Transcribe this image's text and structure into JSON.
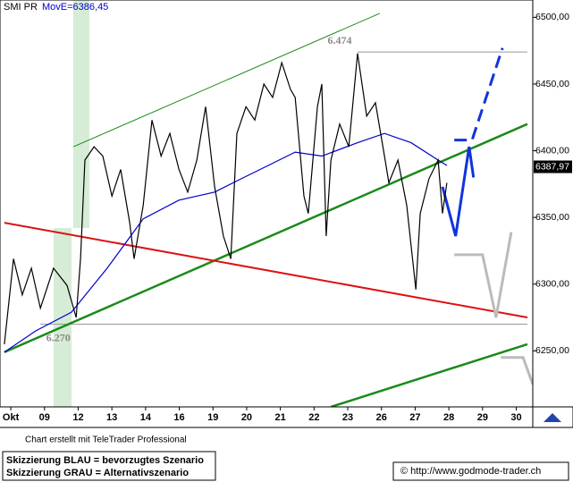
{
  "chart_data": {
    "type": "line",
    "title": "SMI PR",
    "xticks": [
      {
        "value": 0,
        "label": "Okt"
      },
      {
        "value": 1,
        "label": "09"
      },
      {
        "value": 2,
        "label": "12"
      },
      {
        "value": 3,
        "label": "13"
      },
      {
        "value": 4,
        "label": "14"
      },
      {
        "value": 5,
        "label": "16"
      },
      {
        "value": 6,
        "label": "19"
      },
      {
        "value": 7,
        "label": "20"
      },
      {
        "value": 8,
        "label": "21"
      },
      {
        "value": 9,
        "label": "22"
      },
      {
        "value": 10,
        "label": "23"
      },
      {
        "value": 11,
        "label": "26"
      },
      {
        "value": 12,
        "label": "27"
      },
      {
        "value": 13,
        "label": "28"
      },
      {
        "value": 14,
        "label": "29"
      },
      {
        "value": 15,
        "label": "30"
      }
    ],
    "xlim": [
      -0.32,
      15.49
    ],
    "ylim": [
      6208,
      6513
    ],
    "yticks": [
      {
        "value": 6250,
        "label": "6250,00"
      },
      {
        "value": 6300,
        "label": "6300,00"
      },
      {
        "value": 6350,
        "label": "6350,00"
      },
      {
        "value": 6400,
        "label": "6400,00"
      },
      {
        "value": 6450,
        "label": "6450,00"
      },
      {
        "value": 6500,
        "label": "6500,00"
      }
    ],
    "series": [
      {
        "name": "SMI PR",
        "color": "#000000",
        "x": [
          -0.19,
          0.08,
          0.34,
          0.61,
          0.88,
          1.27,
          1.67,
          1.94,
          2.07,
          2.2,
          2.47,
          2.73,
          3.0,
          3.26,
          3.53,
          3.66,
          3.93,
          4.19,
          4.46,
          4.72,
          4.99,
          5.25,
          5.52,
          5.78,
          6.05,
          6.31,
          6.53,
          6.71,
          6.98,
          7.24,
          7.51,
          7.77,
          8.04,
          8.3,
          8.44,
          8.7,
          8.83,
          9.1,
          9.23,
          9.36,
          9.5,
          9.76,
          10.03,
          10.29,
          10.56,
          10.82,
          11.09,
          11.22,
          11.49,
          11.75,
          12.02,
          12.15,
          12.41,
          12.68,
          12.81,
          12.94
        ],
        "values": [
          6255,
          6319,
          6292,
          6312,
          6282,
          6312,
          6299,
          6275,
          6319,
          6393,
          6403,
          6396,
          6366,
          6386,
          6346,
          6319,
          6359,
          6423,
          6396,
          6413,
          6386,
          6369,
          6393,
          6433,
          6373,
          6336,
          6319,
          6413,
          6433,
          6423,
          6450,
          6440,
          6466,
          6446,
          6440,
          6366,
          6353,
          6433,
          6450,
          6336,
          6393,
          6420,
          6403,
          6473,
          6426,
          6436,
          6396,
          6376,
          6393,
          6359,
          6296,
          6353,
          6379,
          6393,
          6353,
          6376
        ]
      },
      {
        "name": "MovE=6386,45",
        "color": "#0000cc",
        "x": [
          -0.19,
          0.74,
          1.8,
          2.86,
          3.93,
          4.99,
          6.05,
          6.84,
          7.64,
          8.44,
          9.23,
          10.29,
          11.09,
          11.88,
          12.68,
          12.94
        ],
        "values": [
          6249,
          6265,
          6279,
          6312,
          6349,
          6363,
          6369,
          6379,
          6389,
          6399,
          6396,
          6406,
          6413,
          6406,
          6393,
          6389
        ]
      }
    ],
    "last_price": {
      "value": 6387.97,
      "label": "6387,97"
    },
    "hlines": [
      {
        "value": 6474,
        "label": "6.474",
        "x": [
          10.29,
          15.33
        ]
      },
      {
        "value": 6270,
        "label": "6.270",
        "x": [
          0.88,
          15.33
        ]
      }
    ],
    "lines": [
      {
        "color": "#1a8a1a",
        "width": 1,
        "x": [
          1.86,
          10.95
        ],
        "values": [
          6403,
          6503
        ]
      },
      {
        "color": "#1a8a1a",
        "width": 2.5,
        "x": [
          -0.19,
          15.33
        ],
        "values": [
          6249,
          6420
        ]
      },
      {
        "color": "#1a8a1a",
        "width": 2.5,
        "x": [
          9.5,
          15.33
        ],
        "values": [
          6208,
          6255
        ]
      },
      {
        "color": "#dd1111",
        "width": 2,
        "x": [
          -0.19,
          15.33
        ],
        "values": [
          6346,
          6275
        ]
      },
      {
        "color": "#1133dd",
        "width": 3,
        "x": [
          12.81,
          13.2,
          13.6,
          13.73
        ],
        "values": [
          6373,
          6336,
          6403,
          6380
        ]
      },
      {
        "color": "#1133dd",
        "width": 3,
        "dashed": true,
        "x": [
          13.16,
          13.69,
          14.59
        ],
        "values": [
          6408,
          6408,
          6477
        ]
      },
      {
        "color": "#bbbbbb",
        "width": 3,
        "x": [
          13.16,
          14.0,
          14.4,
          14.85
        ],
        "values": [
          6322,
          6322,
          6275,
          6339
        ]
      },
      {
        "color": "#bbbbbb",
        "width": 3,
        "x": [
          14.54,
          15.2,
          15.49
        ],
        "values": [
          6245,
          6245,
          6225
        ]
      }
    ],
    "footer": "Chart erstellt mit TeleTrader Professional",
    "notes": [
      "Skizzierung BLAU = bevorzugtes Szenario",
      "Skizzierung GRAU = Alternativszenario"
    ],
    "copyright": "© http://www.godmode-trader.ch"
  }
}
